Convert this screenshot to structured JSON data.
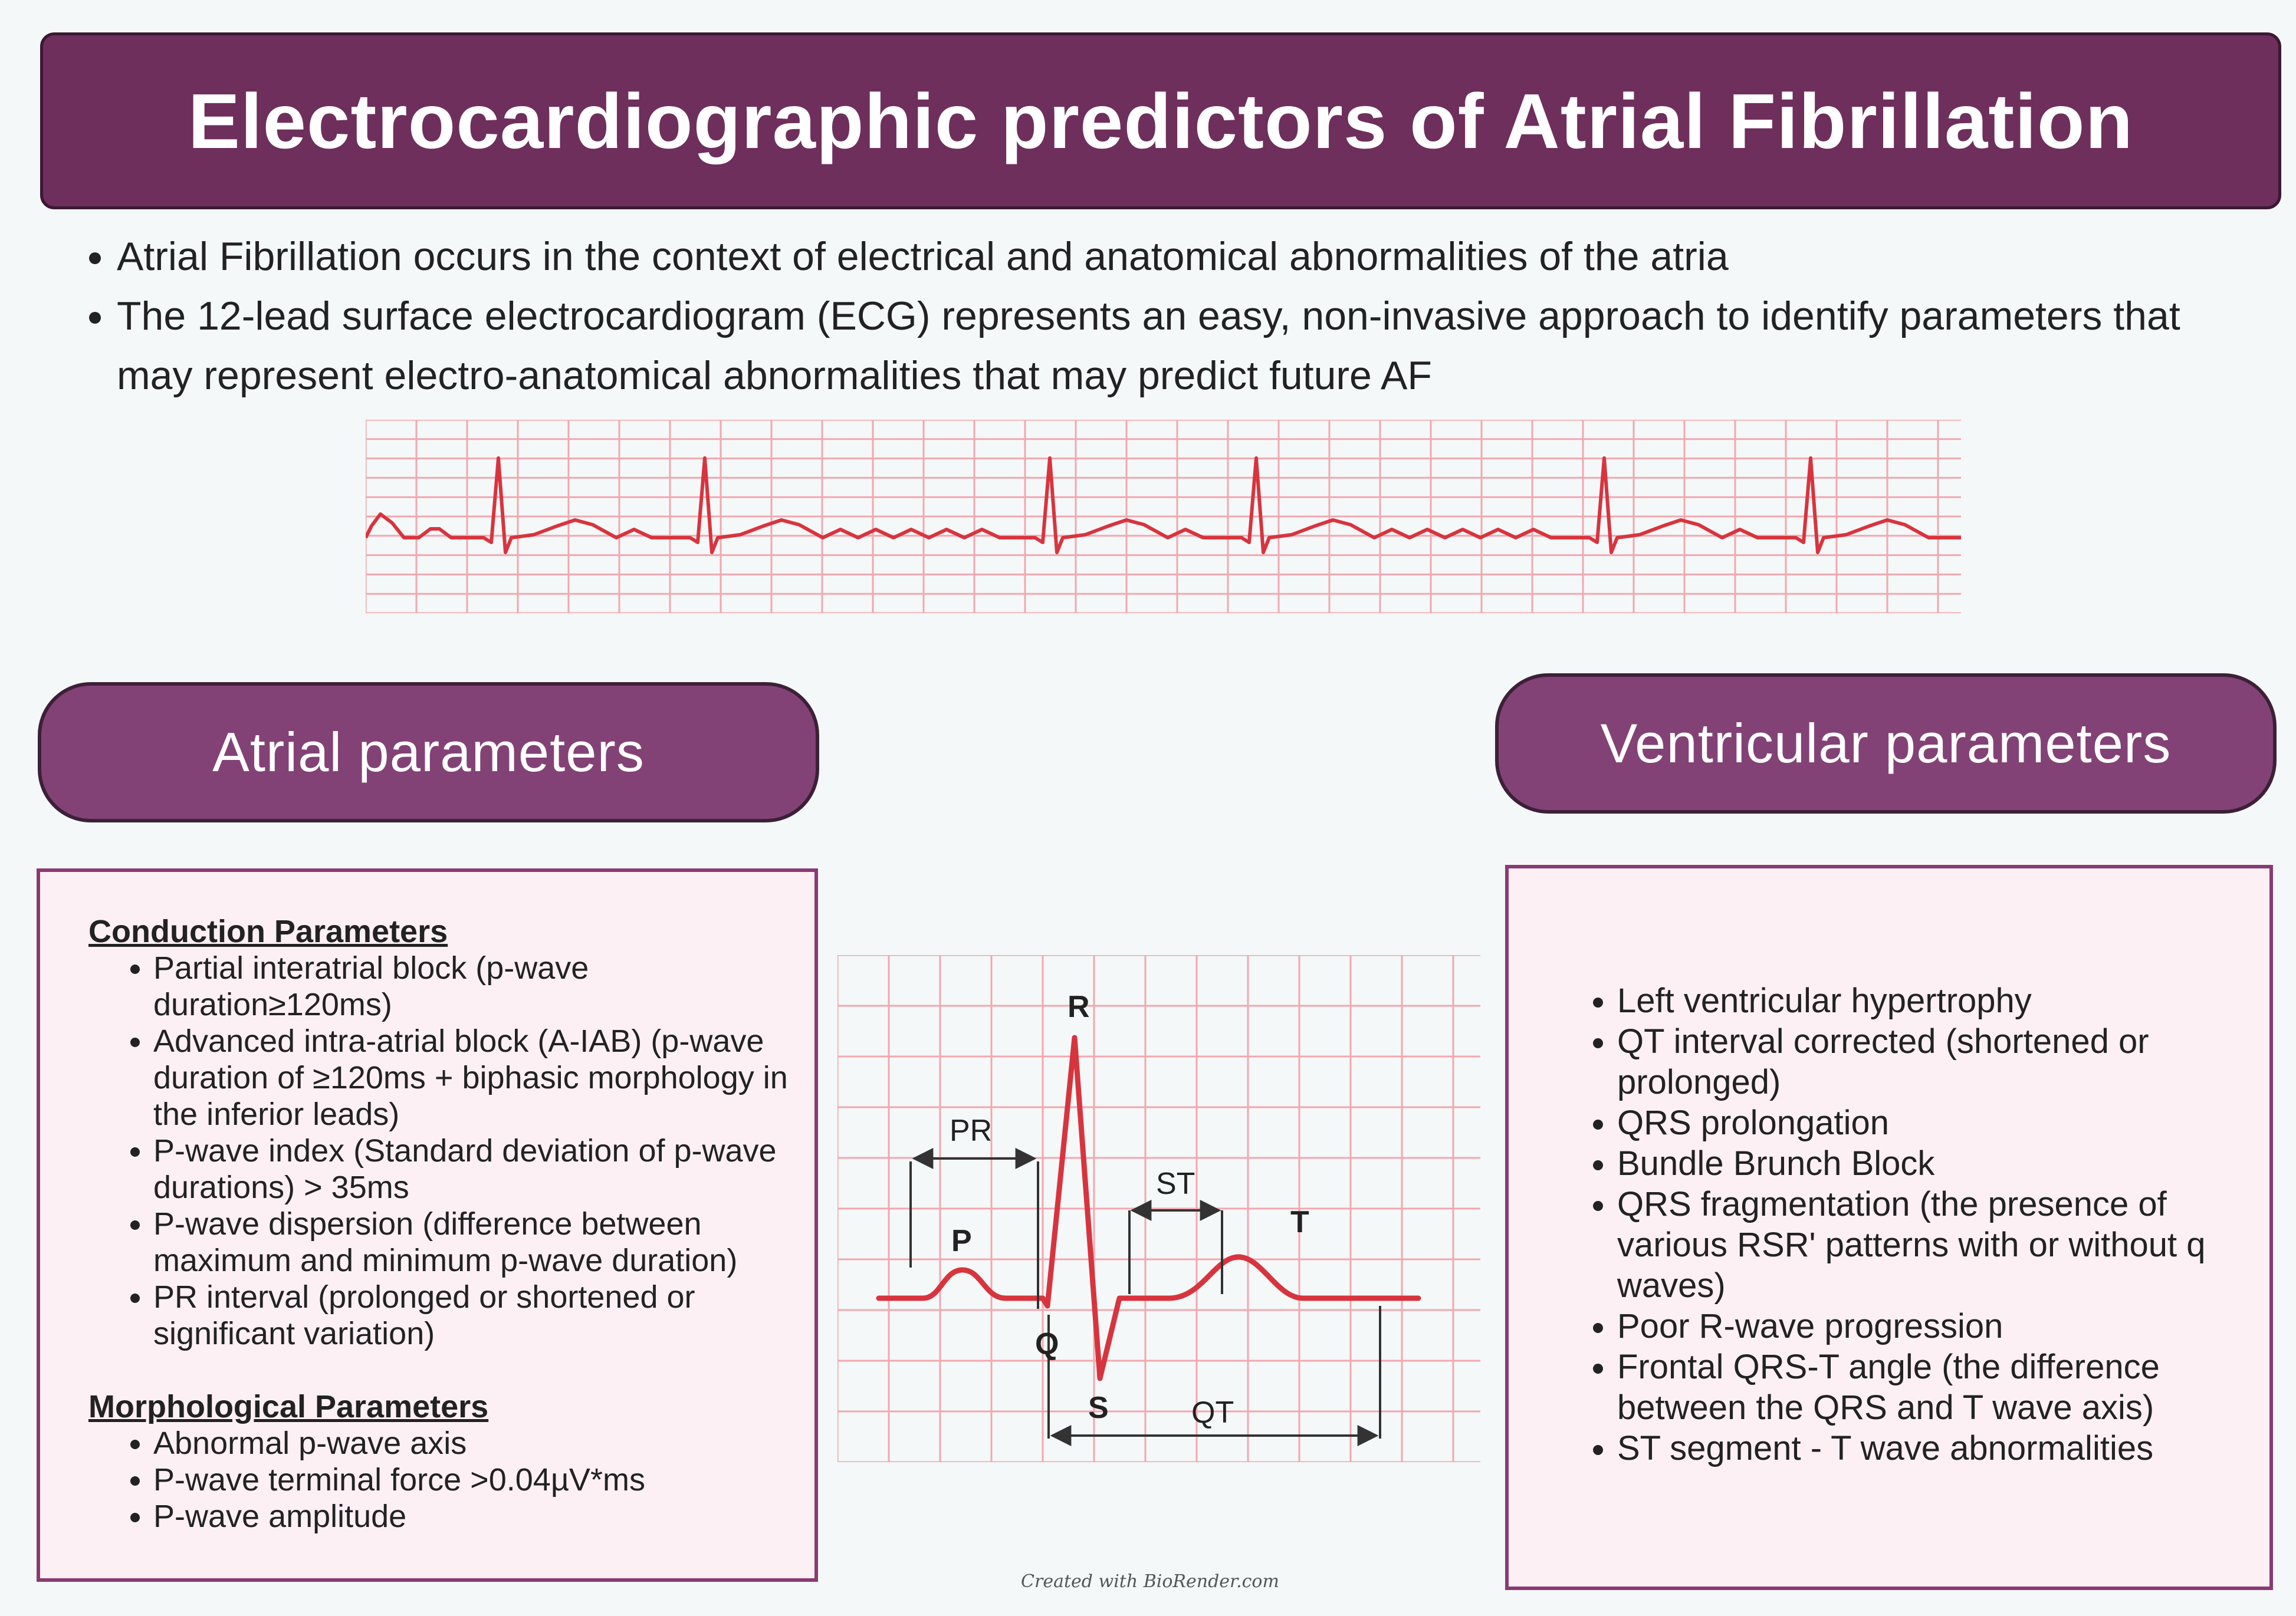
{
  "title": "Electrocardiographic predictors of Atrial Fibrillation",
  "intro_bullets": [
    "Atrial Fibrillation occurs in the context of electrical and anatomical abnormalities of the atria",
    "The 12-lead surface electrocardiogram (ECG) represents an easy, non-invasive approach to identify parameters that may represent electro-anatomical abnormalities that may predict future AF"
  ],
  "atrial": {
    "header": "Atrial parameters",
    "conduction_heading": "Conduction Parameters",
    "conduction_items": [
      "Partial interatrial block (p-wave duration≥120ms)",
      "Advanced intra-atrial block (A-IAB) (p-wave duration of ≥120ms + biphasic morphology in the inferior leads)",
      "P-wave index (Standard deviation of p-wave durations) > 35ms",
      "P-wave dispersion (difference between maximum and minimum p-wave duration)",
      "PR interval (prolonged or shortened or significant variation)"
    ],
    "morphological_heading": "Morphological Parameters",
    "morphological_items": [
      "Abnormal p-wave axis",
      "P-wave terminal force >0.04µV*ms",
      "P-wave amplitude"
    ]
  },
  "ventricular": {
    "header": "Ventricular parameters",
    "items": [
      "Left ventricular hypertrophy",
      "QT interval corrected (shortened or prolonged)",
      "QRS prolongation",
      "Bundle Brunch Block",
      "QRS fragmentation (the presence of various RSR' patterns with or without q waves)",
      "Poor R-wave progression",
      "Frontal QRS-T angle (the difference between the QRS and T wave axis)",
      "ST segment - T wave abnormalities"
    ]
  },
  "ecg_labels": {
    "p": "P",
    "q": "Q",
    "r": "R",
    "s": "S",
    "t": "T",
    "pr": "PR",
    "st": "ST",
    "qt": "QT"
  },
  "credit": "Created with BioRender.com",
  "colors": {
    "banner": "#6e2f5c",
    "pill": "#834276",
    "box_border": "#8a3a73",
    "box_fill": "#fdf0f5",
    "ecg_trace": "#d8343e",
    "ecg_grid": "#f2a7b0"
  }
}
